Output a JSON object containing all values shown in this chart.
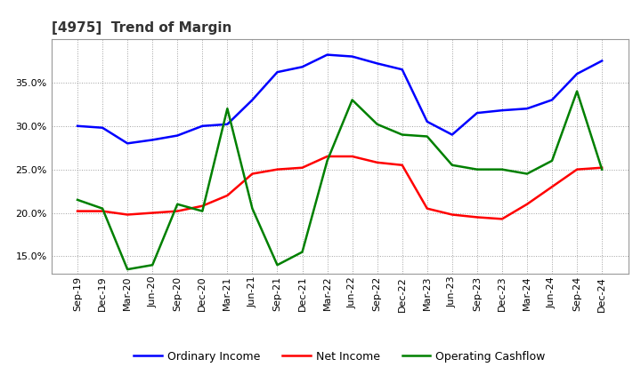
{
  "title": "[4975]  Trend of Margin",
  "x_labels": [
    "Sep-19",
    "Dec-19",
    "Mar-20",
    "Jun-20",
    "Sep-20",
    "Dec-20",
    "Mar-21",
    "Jun-21",
    "Sep-21",
    "Dec-21",
    "Mar-22",
    "Jun-22",
    "Sep-22",
    "Dec-22",
    "Mar-23",
    "Jun-23",
    "Sep-23",
    "Dec-23",
    "Mar-24",
    "Jun-24",
    "Sep-24",
    "Dec-24"
  ],
  "ordinary_income": [
    30.0,
    29.8,
    28.0,
    28.4,
    28.9,
    30.0,
    30.2,
    33.0,
    36.2,
    36.8,
    38.2,
    38.0,
    37.2,
    36.5,
    30.5,
    29.0,
    31.5,
    31.8,
    32.0,
    33.0,
    36.0,
    37.5
  ],
  "net_income": [
    20.2,
    20.2,
    19.8,
    20.0,
    20.2,
    20.8,
    22.0,
    24.5,
    25.0,
    25.2,
    26.5,
    26.5,
    25.8,
    25.5,
    20.5,
    19.8,
    19.5,
    19.3,
    21.0,
    23.0,
    25.0,
    25.2
  ],
  "operating_cashflow": [
    21.5,
    20.5,
    13.5,
    14.0,
    21.0,
    20.2,
    32.0,
    20.5,
    14.0,
    15.5,
    26.0,
    33.0,
    30.2,
    29.0,
    28.8,
    25.5,
    25.0,
    25.0,
    24.5,
    26.0,
    34.0,
    25.0
  ],
  "ylim": [
    13.0,
    40.0
  ],
  "yticks": [
    15.0,
    20.0,
    25.0,
    30.0,
    35.0
  ],
  "colors": {
    "ordinary_income": "#0000FF",
    "net_income": "#FF0000",
    "operating_cashflow": "#008000",
    "background": "#FFFFFF",
    "grid": "#888888",
    "plot_bg": "#FFFFFF"
  },
  "legend_labels": [
    "Ordinary Income",
    "Net Income",
    "Operating Cashflow"
  ],
  "title_color": "#333333",
  "title_fontsize": 11,
  "tick_fontsize": 8,
  "line_width": 1.8
}
